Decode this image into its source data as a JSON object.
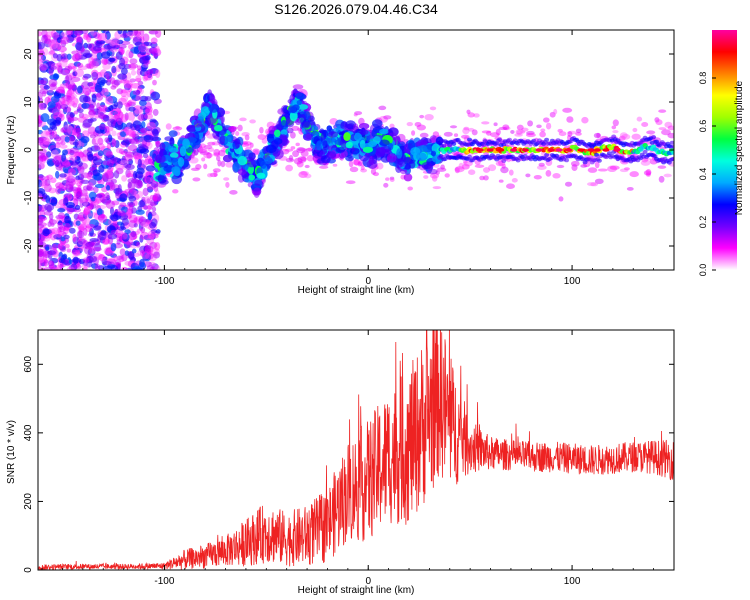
{
  "title": "S126.2026.079.04.46.C34",
  "chart_data": [
    {
      "type": "heatmap",
      "name": "spectrogram",
      "xlabel": "Height of straight line (km)",
      "ylabel": "Frequency (Hz)",
      "xlim": [
        -162,
        150
      ],
      "ylim": [
        -25,
        25
      ],
      "xticks": [
        -100,
        0,
        100
      ],
      "yticks": [
        -20,
        -10,
        0,
        10,
        20
      ],
      "colorbar": {
        "label": "Normalized spectral amplitude",
        "range": [
          0.0,
          1.0
        ],
        "ticks": [
          0.0,
          0.2,
          0.4,
          0.6,
          0.8
        ],
        "colormap": [
          "#ffffff",
          "#ff00ff",
          "#7000ff",
          "#0000ff",
          "#00aaff",
          "#00ffdd",
          "#00ff40",
          "#a0ff00",
          "#ffff00",
          "#ff8000",
          "#ff0000",
          "#ff00a0"
        ]
      },
      "description_regions": [
        {
          "x_range": [
            -162,
            -103
          ],
          "character": "broadband noise, amplitude ~0.05-0.3"
        },
        {
          "x_range": [
            -103,
            35
          ],
          "character": "wandering dispersed signal, frequency between -12 and +14 Hz"
        },
        {
          "x_range": [
            35,
            150
          ],
          "character": "narrow strong carrier near 0 Hz, amplitude up to ~1.0"
        }
      ]
    },
    {
      "type": "line",
      "name": "snr",
      "xlabel": "Height of straight line (km)",
      "ylabel": "SNR (10 * v/v)",
      "xlim": [
        -162,
        150
      ],
      "ylim": [
        0,
        700
      ],
      "xticks": [
        -100,
        0,
        100
      ],
      "yticks": [
        0,
        200,
        400,
        600
      ],
      "color": "#ee2222",
      "x": [
        -162,
        -140,
        -120,
        -100,
        -90,
        -80,
        -70,
        -60,
        -50,
        -40,
        -30,
        -20,
        -10,
        0,
        10,
        20,
        30,
        35,
        40,
        50,
        60,
        70,
        80,
        90,
        100,
        110,
        120,
        130,
        140,
        150
      ],
      "values": [
        8,
        10,
        10,
        12,
        30,
        40,
        55,
        80,
        110,
        90,
        100,
        130,
        230,
        260,
        330,
        360,
        460,
        520,
        430,
        360,
        340,
        335,
        330,
        330,
        325,
        320,
        325,
        330,
        330,
        320
      ],
      "spread": [
        8,
        8,
        8,
        10,
        30,
        35,
        45,
        70,
        90,
        80,
        90,
        110,
        150,
        180,
        200,
        230,
        250,
        250,
        200,
        80,
        50,
        45,
        45,
        45,
        45,
        45,
        45,
        45,
        50,
        60
      ]
    }
  ]
}
